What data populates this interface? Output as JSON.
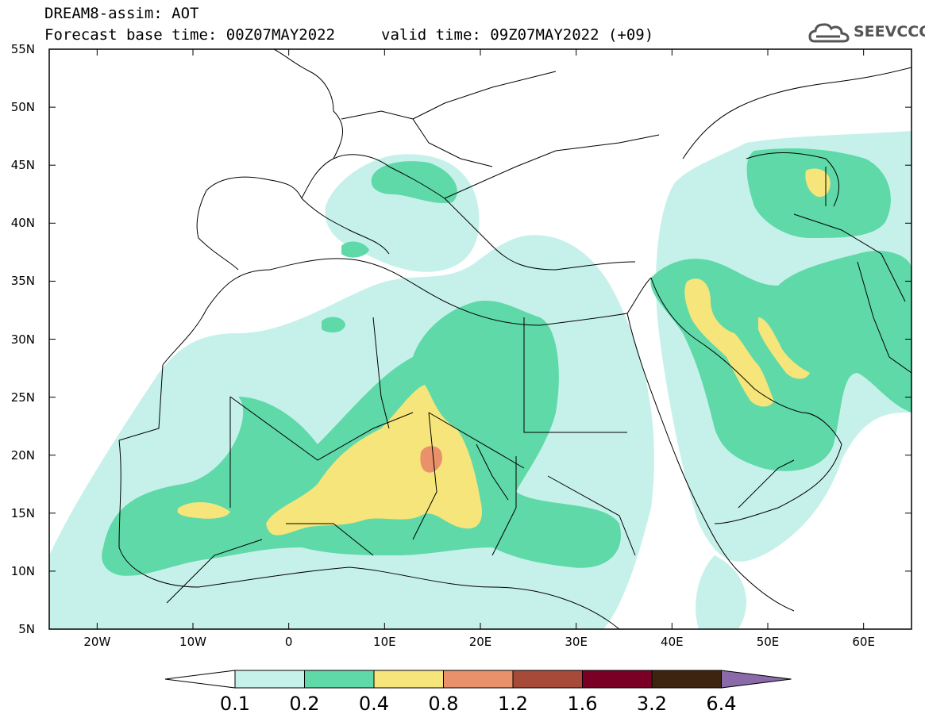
{
  "header": {
    "model": "DREAM8-assim: AOT",
    "base_time": "Forecast base time: 00Z07MAY2022",
    "valid_time": "valid time: 09Z07MAY2022 (+09)",
    "logo_text": "SEEVCCC"
  },
  "map": {
    "lon_range": [
      -25,
      65
    ],
    "lat_range": [
      5,
      55
    ],
    "lat_labels": [
      {
        "lat": 55,
        "text": "55N"
      },
      {
        "lat": 50,
        "text": "50N"
      },
      {
        "lat": 45,
        "text": "45N"
      },
      {
        "lat": 40,
        "text": "40N"
      },
      {
        "lat": 35,
        "text": "35N"
      },
      {
        "lat": 30,
        "text": "30N"
      },
      {
        "lat": 25,
        "text": "25N"
      },
      {
        "lat": 20,
        "text": "20N"
      },
      {
        "lat": 15,
        "text": "15N"
      },
      {
        "lat": 10,
        "text": "10N"
      },
      {
        "lat": 5,
        "text": "5N"
      }
    ],
    "lon_labels": [
      {
        "lon": -20,
        "text": "20W"
      },
      {
        "lon": -10,
        "text": "10W"
      },
      {
        "lon": 0,
        "text": "0"
      },
      {
        "lon": 10,
        "text": "10E"
      },
      {
        "lon": 20,
        "text": "20E"
      },
      {
        "lon": 30,
        "text": "30E"
      },
      {
        "lon": 40,
        "text": "40E"
      },
      {
        "lon": 50,
        "text": "50E"
      },
      {
        "lon": 60,
        "text": "60E"
      }
    ]
  },
  "legend": {
    "thresholds": [
      "0.1",
      "0.2",
      "0.4",
      "0.8",
      "1.2",
      "1.6",
      "3.2",
      "6.4"
    ],
    "colors": {
      "under": "#ffffff",
      "c1": "#c6f1ea",
      "c2": "#5fd9a8",
      "c3": "#f5e57a",
      "c4": "#e8916a",
      "c5": "#a84a3a",
      "c6": "#7a0026",
      "c7": "#3d2411",
      "over": "#8a6aa8"
    }
  }
}
